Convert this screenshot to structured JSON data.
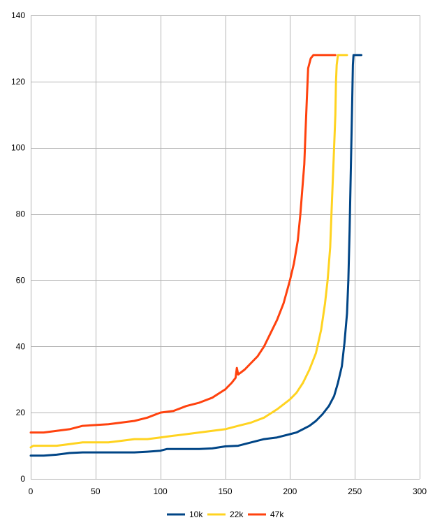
{
  "chart_data": {
    "type": "line",
    "title": "",
    "xlabel": "",
    "ylabel": "",
    "xlim": [
      0,
      300
    ],
    "ylim": [
      0,
      140
    ],
    "x_ticks": [
      0,
      50,
      100,
      150,
      200,
      250,
      300
    ],
    "y_ticks": [
      0,
      20,
      40,
      60,
      80,
      100,
      120,
      140
    ],
    "x_tick_labels": [
      "0",
      "50",
      "100",
      "150",
      "200",
      "250",
      "300"
    ],
    "y_tick_labels": [
      "0",
      "20",
      "40",
      "60",
      "80",
      "100",
      "120",
      "140"
    ],
    "grid": true,
    "legend_position": "bottom",
    "series": [
      {
        "name": "10k",
        "color": "#004586",
        "points": [
          [
            0,
            7
          ],
          [
            10,
            7
          ],
          [
            20,
            7.3
          ],
          [
            30,
            7.8
          ],
          [
            40,
            8
          ],
          [
            60,
            8
          ],
          [
            80,
            8
          ],
          [
            90,
            8.2
          ],
          [
            100,
            8.5
          ],
          [
            105,
            9
          ],
          [
            130,
            9
          ],
          [
            140,
            9.2
          ],
          [
            150,
            9.8
          ],
          [
            160,
            10
          ],
          [
            170,
            11
          ],
          [
            180,
            12
          ],
          [
            190,
            12.5
          ],
          [
            200,
            13.5
          ],
          [
            205,
            14
          ],
          [
            210,
            15
          ],
          [
            215,
            16
          ],
          [
            220,
            17.5
          ],
          [
            225,
            19.5
          ],
          [
            230,
            22
          ],
          [
            234,
            25
          ],
          [
            237,
            29
          ],
          [
            240,
            34
          ],
          [
            242,
            41
          ],
          [
            244,
            50
          ],
          [
            245,
            60
          ],
          [
            246,
            75
          ],
          [
            247,
            95
          ],
          [
            248,
            115
          ],
          [
            248.5,
            125
          ],
          [
            249,
            128
          ],
          [
            255,
            128
          ]
        ]
      },
      {
        "name": "22k",
        "color": "#ffd320",
        "points": [
          [
            0,
            9.5
          ],
          [
            2,
            10
          ],
          [
            20,
            10
          ],
          [
            30,
            10.5
          ],
          [
            40,
            11
          ],
          [
            60,
            11
          ],
          [
            70,
            11.5
          ],
          [
            80,
            12
          ],
          [
            90,
            12
          ],
          [
            100,
            12.5
          ],
          [
            110,
            13
          ],
          [
            120,
            13.5
          ],
          [
            130,
            14
          ],
          [
            140,
            14.5
          ],
          [
            150,
            15
          ],
          [
            160,
            16
          ],
          [
            170,
            17
          ],
          [
            180,
            18.5
          ],
          [
            190,
            21
          ],
          [
            200,
            24
          ],
          [
            205,
            26
          ],
          [
            210,
            29
          ],
          [
            215,
            33
          ],
          [
            220,
            38
          ],
          [
            224,
            45
          ],
          [
            227,
            53
          ],
          [
            229,
            60
          ],
          [
            231,
            70
          ],
          [
            232,
            80
          ],
          [
            233,
            90
          ],
          [
            234,
            100
          ],
          [
            235,
            110
          ],
          [
            235.5,
            120
          ],
          [
            236,
            125
          ],
          [
            237,
            128
          ],
          [
            244,
            128
          ]
        ]
      },
      {
        "name": "47k",
        "color": "#ff420e",
        "points": [
          [
            0,
            14
          ],
          [
            10,
            14
          ],
          [
            20,
            14.5
          ],
          [
            30,
            15
          ],
          [
            40,
            16
          ],
          [
            60,
            16.5
          ],
          [
            70,
            17
          ],
          [
            80,
            17.5
          ],
          [
            90,
            18.5
          ],
          [
            100,
            20
          ],
          [
            110,
            20.5
          ],
          [
            120,
            22
          ],
          [
            130,
            23
          ],
          [
            140,
            24.5
          ],
          [
            150,
            27
          ],
          [
            155,
            29
          ],
          [
            158,
            30.5
          ],
          [
            159,
            33.5
          ],
          [
            160,
            31.5
          ],
          [
            165,
            33
          ],
          [
            170,
            35
          ],
          [
            175,
            37
          ],
          [
            180,
            40
          ],
          [
            185,
            44
          ],
          [
            190,
            48
          ],
          [
            195,
            53
          ],
          [
            200,
            60
          ],
          [
            203,
            65
          ],
          [
            206,
            72
          ],
          [
            208,
            80
          ],
          [
            210,
            90
          ],
          [
            211,
            95
          ],
          [
            212,
            105
          ],
          [
            213,
            115
          ],
          [
            214,
            124
          ],
          [
            216,
            127
          ],
          [
            218,
            128
          ],
          [
            235,
            128
          ]
        ]
      }
    ]
  }
}
